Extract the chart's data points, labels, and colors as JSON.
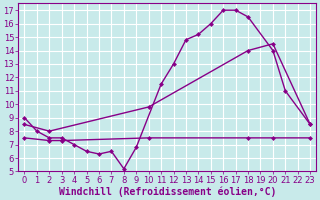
{
  "bg_color": "#c8eaea",
  "grid_color": "#ffffff",
  "line_color": "#880088",
  "marker": "D",
  "markersize": 2.5,
  "linewidth": 1.0,
  "xlabel": "Windchill (Refroidissement éolien,°C)",
  "xlim": [
    -0.5,
    23.5
  ],
  "ylim": [
    5,
    17.5
  ],
  "xticks": [
    0,
    1,
    2,
    3,
    4,
    5,
    6,
    7,
    8,
    9,
    10,
    11,
    12,
    13,
    14,
    15,
    16,
    17,
    18,
    19,
    20,
    21,
    22,
    23
  ],
  "yticks": [
    5,
    6,
    7,
    8,
    9,
    10,
    11,
    12,
    13,
    14,
    15,
    16,
    17
  ],
  "series1_x": [
    0,
    1,
    2,
    3,
    4,
    5,
    6,
    7,
    8,
    9,
    11,
    12,
    13,
    14,
    15,
    16,
    17,
    18,
    20,
    21,
    23
  ],
  "series1_y": [
    9.0,
    8.0,
    7.5,
    7.5,
    7.0,
    6.5,
    6.3,
    6.5,
    5.2,
    6.8,
    11.5,
    13.0,
    14.8,
    15.2,
    16.0,
    17.0,
    17.0,
    16.5,
    14.0,
    11.0,
    8.5
  ],
  "series2_x": [
    0,
    2,
    10,
    18,
    20,
    23
  ],
  "series2_y": [
    8.5,
    8.0,
    9.8,
    14.0,
    14.5,
    8.5
  ],
  "series3_x": [
    0,
    2,
    3,
    10,
    18,
    20,
    23
  ],
  "series3_y": [
    7.5,
    7.3,
    7.3,
    7.5,
    7.5,
    7.5,
    7.5
  ],
  "tick_fontsize": 6.0,
  "xlabel_fontsize": 7.0
}
